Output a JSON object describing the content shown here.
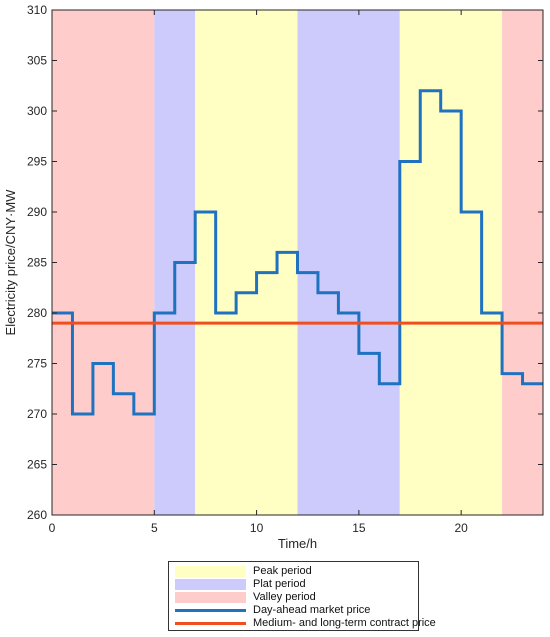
{
  "chart_data": {
    "type": "line",
    "xlabel": "Time/h",
    "ylabel": "Electricity price/CNY·MW",
    "xlim": [
      0,
      24
    ],
    "ylim": [
      260,
      310
    ],
    "xticks": [
      0,
      5,
      10,
      15,
      20
    ],
    "yticks": [
      260,
      265,
      270,
      275,
      280,
      285,
      290,
      295,
      300,
      305,
      310
    ],
    "x_tick_labels": [
      "0",
      "5",
      "10",
      "15",
      "20"
    ],
    "y_tick_labels": [
      "260",
      "265",
      "270",
      "275",
      "280",
      "285",
      "290",
      "295",
      "300",
      "305",
      "310"
    ],
    "grid": false,
    "legend_position": "below plot",
    "periods": [
      {
        "type": "valley",
        "start": 0,
        "end": 5
      },
      {
        "type": "plat",
        "start": 5,
        "end": 7
      },
      {
        "type": "peak",
        "start": 7,
        "end": 12
      },
      {
        "type": "plat",
        "start": 12,
        "end": 17
      },
      {
        "type": "peak",
        "start": 17,
        "end": 22
      },
      {
        "type": "valley",
        "start": 22,
        "end": 24
      }
    ],
    "period_colors": {
      "peak": "#ffffc4",
      "plat": "#cccbfb",
      "valley": "#ffcccc"
    },
    "series": [
      {
        "name": "Day-ahead market price",
        "color": "#1f72c0",
        "step": "post",
        "x": [
          0,
          1,
          2,
          3,
          4,
          5,
          6,
          7,
          8,
          9,
          10,
          11,
          12,
          13,
          14,
          15,
          16,
          17,
          18,
          19,
          20,
          21,
          22,
          23
        ],
        "values": [
          280,
          270,
          275,
          272,
          270,
          280,
          285,
          290,
          280,
          282,
          284,
          286,
          284,
          282,
          280,
          276,
          273,
          295,
          302,
          300,
          290,
          280,
          274,
          273
        ]
      },
      {
        "name": "Medium- and long-term contract price",
        "color": "#f04e1e",
        "x": [
          0,
          24
        ],
        "values": [
          279,
          279
        ]
      }
    ]
  },
  "legend": {
    "items": [
      {
        "label": "Peak period",
        "kind": "patch",
        "color": "#ffffc4"
      },
      {
        "label": "Plat period",
        "kind": "patch",
        "color": "#cccbfb"
      },
      {
        "label": "Valley period",
        "kind": "patch",
        "color": "#ffcccc"
      },
      {
        "label": "Day-ahead market price",
        "kind": "line",
        "color": "#1f72c0"
      },
      {
        "label": "Medium- and long-term contract price",
        "kind": "line",
        "color": "#f04e1e"
      }
    ]
  }
}
